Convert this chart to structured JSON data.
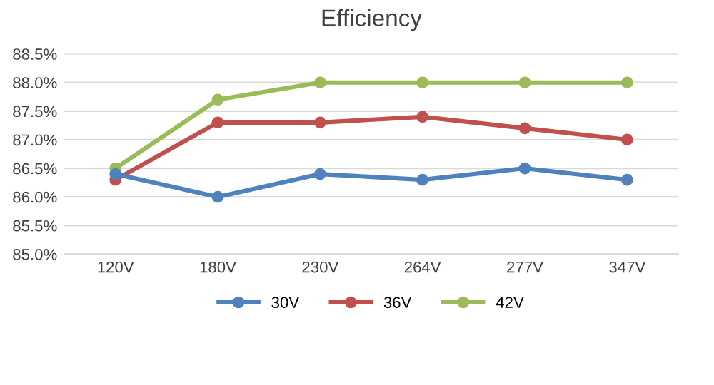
{
  "chart_data": {
    "type": "line",
    "title": "Efficiency",
    "categories": [
      "120V",
      "180V",
      "230V",
      "264V",
      "277V",
      "347V"
    ],
    "series": [
      {
        "name": "30V",
        "color": "#4f81bd",
        "values": [
          86.4,
          86.0,
          86.4,
          86.3,
          86.5,
          86.3
        ]
      },
      {
        "name": "36V",
        "color": "#c0504d",
        "values": [
          86.3,
          87.3,
          87.3,
          87.4,
          87.2,
          87.0
        ]
      },
      {
        "name": "42V",
        "color": "#9bbb59",
        "values": [
          86.5,
          87.7,
          88.0,
          88.0,
          88.0,
          88.0
        ]
      }
    ],
    "ylim": [
      85.0,
      88.5
    ],
    "yticks": [
      {
        "value": 85.0,
        "label": "85.0%"
      },
      {
        "value": 85.5,
        "label": "85.5%"
      },
      {
        "value": 86.0,
        "label": "86.0%"
      },
      {
        "value": 86.5,
        "label": "86.5%"
      },
      {
        "value": 87.0,
        "label": "87.0%"
      },
      {
        "value": 87.5,
        "label": "87.5%"
      },
      {
        "value": 88.0,
        "label": "88.0%"
      },
      {
        "value": 88.5,
        "label": "88.5%"
      }
    ],
    "grid": "y",
    "legend": "bottom",
    "marker": "circle",
    "line_style": "solid"
  }
}
